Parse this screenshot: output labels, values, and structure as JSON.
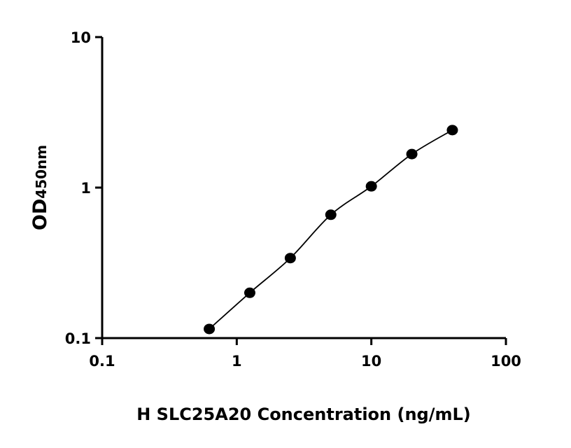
{
  "chart_data": {
    "type": "scatter",
    "title": "",
    "xlabel": "H SLC25A20 Concentration (ng/mL)",
    "ylabel": "OD",
    "ylabel_subscript": "450nm",
    "xscale": "log",
    "yscale": "log",
    "xlim": [
      0.1,
      100
    ],
    "ylim": [
      0.1,
      10
    ],
    "xticks": [
      "0.1",
      "1",
      "10",
      "100"
    ],
    "yticks": [
      "0.1",
      "1",
      "10"
    ],
    "grid": false,
    "fit_curve": true,
    "series": [
      {
        "x": [
          0.625,
          1.25,
          2.5,
          5,
          10,
          20,
          40
        ],
        "y": [
          0.115,
          0.2,
          0.34,
          0.66,
          1.02,
          1.67,
          2.41
        ]
      }
    ],
    "colors": {
      "marker": "#000000",
      "line": "#000000"
    }
  }
}
